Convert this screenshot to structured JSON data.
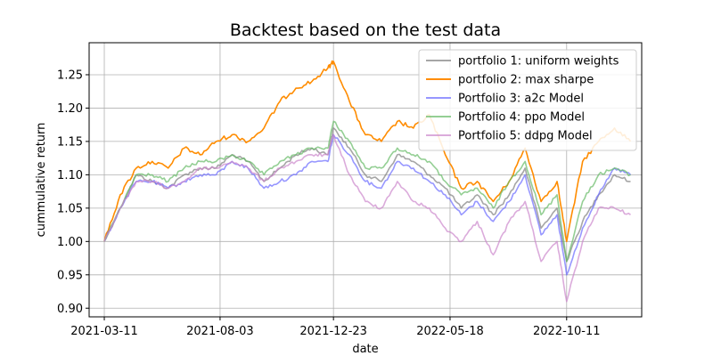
{
  "chart_data": {
    "type": "line",
    "title": "Backtest based on the test data",
    "xlabel": "date",
    "ylabel": "cummulative return",
    "xlim": [
      "2021-02-20",
      "2023-01-13"
    ],
    "ylim": [
      0.887,
      1.298
    ],
    "x_ticks": [
      "2021-03-11",
      "2021-08-03",
      "2021-12-23",
      "2022-05-18",
      "2022-10-11"
    ],
    "y_ticks": [
      0.9,
      0.95,
      1.0,
      1.05,
      1.1,
      1.15,
      1.2,
      1.25
    ],
    "y_tick_labels": [
      "0.90",
      "0.95",
      "1.00",
      "1.05",
      "1.10",
      "1.15",
      "1.20",
      "1.25"
    ],
    "grid": true,
    "legend_position": "top-right",
    "series": [
      {
        "name": "portfolio 1: uniform weights",
        "color": "#808080",
        "x": [
          "2021-03-11",
          "2021-03-31",
          "2021-04-20",
          "2021-05-10",
          "2021-05-30",
          "2021-06-19",
          "2021-07-09",
          "2021-07-29",
          "2021-08-18",
          "2021-09-07",
          "2021-09-27",
          "2021-10-17",
          "2021-11-06",
          "2021-11-26",
          "2021-12-16",
          "2021-12-23",
          "2022-01-12",
          "2022-02-01",
          "2022-02-21",
          "2022-03-13",
          "2022-04-02",
          "2022-04-22",
          "2022-05-12",
          "2022-06-01",
          "2022-06-21",
          "2022-07-11",
          "2022-07-31",
          "2022-08-20",
          "2022-09-09",
          "2022-09-29",
          "2022-10-11",
          "2022-10-31",
          "2022-11-20",
          "2022-12-10",
          "2022-12-30"
        ],
        "y": [
          1.0,
          1.05,
          1.1,
          1.09,
          1.08,
          1.1,
          1.11,
          1.11,
          1.13,
          1.12,
          1.09,
          1.11,
          1.13,
          1.14,
          1.13,
          1.17,
          1.14,
          1.1,
          1.09,
          1.13,
          1.12,
          1.1,
          1.08,
          1.05,
          1.07,
          1.04,
          1.07,
          1.11,
          1.02,
          1.05,
          0.97,
          1.03,
          1.07,
          1.1,
          1.09
        ]
      },
      {
        "name": "portfolio 2: max sharpe",
        "color": "#ff8c00",
        "x": [
          "2021-03-11",
          "2021-03-31",
          "2021-04-20",
          "2021-05-10",
          "2021-05-30",
          "2021-06-19",
          "2021-07-09",
          "2021-07-29",
          "2021-08-18",
          "2021-09-07",
          "2021-09-27",
          "2021-10-17",
          "2021-11-06",
          "2021-11-26",
          "2021-12-16",
          "2021-12-23",
          "2022-01-12",
          "2022-02-01",
          "2022-02-21",
          "2022-03-13",
          "2022-04-02",
          "2022-04-22",
          "2022-05-12",
          "2022-06-01",
          "2022-06-21",
          "2022-07-11",
          "2022-07-31",
          "2022-08-20",
          "2022-09-09",
          "2022-09-29",
          "2022-10-11",
          "2022-10-31",
          "2022-11-20",
          "2022-12-10",
          "2022-12-30"
        ],
        "y": [
          1.0,
          1.07,
          1.11,
          1.12,
          1.11,
          1.14,
          1.13,
          1.15,
          1.16,
          1.15,
          1.17,
          1.21,
          1.23,
          1.24,
          1.26,
          1.27,
          1.21,
          1.16,
          1.15,
          1.18,
          1.17,
          1.19,
          1.13,
          1.08,
          1.09,
          1.06,
          1.09,
          1.14,
          1.06,
          1.09,
          1.0,
          1.12,
          1.15,
          1.17,
          1.15
        ]
      },
      {
        "name": "Portfolio 3: a2c Model",
        "color": "#6b6bff",
        "x": [
          "2021-03-11",
          "2021-03-31",
          "2021-04-20",
          "2021-05-10",
          "2021-05-30",
          "2021-06-19",
          "2021-07-09",
          "2021-07-29",
          "2021-08-18",
          "2021-09-07",
          "2021-09-27",
          "2021-10-17",
          "2021-11-06",
          "2021-11-26",
          "2021-12-16",
          "2021-12-23",
          "2022-01-12",
          "2022-02-01",
          "2022-02-21",
          "2022-03-13",
          "2022-04-02",
          "2022-04-22",
          "2022-05-12",
          "2022-06-01",
          "2022-06-21",
          "2022-07-11",
          "2022-07-31",
          "2022-08-20",
          "2022-09-09",
          "2022-09-29",
          "2022-10-11",
          "2022-10-31",
          "2022-11-20",
          "2022-12-10",
          "2022-12-30"
        ],
        "y": [
          1.0,
          1.05,
          1.09,
          1.09,
          1.08,
          1.09,
          1.1,
          1.1,
          1.12,
          1.11,
          1.08,
          1.09,
          1.1,
          1.12,
          1.12,
          1.16,
          1.13,
          1.09,
          1.08,
          1.12,
          1.11,
          1.09,
          1.07,
          1.04,
          1.06,
          1.03,
          1.06,
          1.1,
          1.01,
          1.04,
          0.95,
          1.02,
          1.07,
          1.11,
          1.1
        ]
      },
      {
        "name": "Portfolio 4: ppo Model",
        "color": "#66bb66",
        "x": [
          "2021-03-11",
          "2021-03-31",
          "2021-04-20",
          "2021-05-10",
          "2021-05-30",
          "2021-06-19",
          "2021-07-09",
          "2021-07-29",
          "2021-08-18",
          "2021-09-07",
          "2021-09-27",
          "2021-10-17",
          "2021-11-06",
          "2021-11-26",
          "2021-12-16",
          "2021-12-23",
          "2022-01-12",
          "2022-02-01",
          "2022-02-21",
          "2022-03-13",
          "2022-04-02",
          "2022-04-22",
          "2022-05-12",
          "2022-06-01",
          "2022-06-21",
          "2022-07-11",
          "2022-07-31",
          "2022-08-20",
          "2022-09-09",
          "2022-09-29",
          "2022-10-11",
          "2022-10-31",
          "2022-11-20",
          "2022-12-10",
          "2022-12-30"
        ],
        "y": [
          1.0,
          1.05,
          1.1,
          1.1,
          1.09,
          1.11,
          1.12,
          1.12,
          1.13,
          1.12,
          1.1,
          1.12,
          1.13,
          1.14,
          1.14,
          1.18,
          1.15,
          1.11,
          1.11,
          1.14,
          1.13,
          1.12,
          1.09,
          1.07,
          1.08,
          1.05,
          1.09,
          1.12,
          1.04,
          1.07,
          0.97,
          1.06,
          1.1,
          1.11,
          1.1
        ]
      },
      {
        "name": "Portfolio 5: ddpg Model",
        "color": "#cc88cc",
        "x": [
          "2021-03-11",
          "2021-03-31",
          "2021-04-20",
          "2021-05-10",
          "2021-05-30",
          "2021-06-19",
          "2021-07-09",
          "2021-07-29",
          "2021-08-18",
          "2021-09-07",
          "2021-09-27",
          "2021-10-17",
          "2021-11-06",
          "2021-11-26",
          "2021-12-16",
          "2021-12-23",
          "2022-01-12",
          "2022-02-01",
          "2022-02-21",
          "2022-03-13",
          "2022-04-02",
          "2022-04-22",
          "2022-05-12",
          "2022-06-01",
          "2022-06-21",
          "2022-07-11",
          "2022-07-31",
          "2022-08-20",
          "2022-09-09",
          "2022-09-29",
          "2022-10-11",
          "2022-10-31",
          "2022-11-20",
          "2022-12-10",
          "2022-12-30"
        ],
        "y": [
          1.0,
          1.05,
          1.09,
          1.09,
          1.08,
          1.09,
          1.11,
          1.11,
          1.12,
          1.11,
          1.09,
          1.11,
          1.12,
          1.13,
          1.13,
          1.16,
          1.1,
          1.06,
          1.05,
          1.09,
          1.06,
          1.05,
          1.02,
          1.0,
          1.03,
          0.98,
          1.03,
          1.06,
          0.97,
          1.0,
          0.91,
          1.0,
          1.05,
          1.05,
          1.04
        ]
      }
    ]
  }
}
